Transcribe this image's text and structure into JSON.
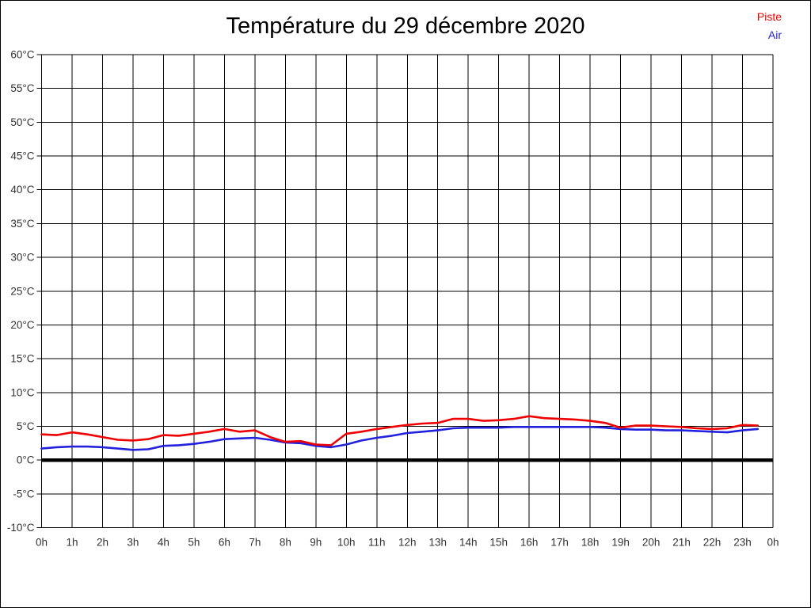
{
  "page": {
    "background": "#ffffff",
    "border_color": "#000000"
  },
  "header": {
    "title": "Température du 29 décembre 2020"
  },
  "legend": {
    "position": "top-right",
    "items": [
      {
        "label": "Piste",
        "color": "#ee0000"
      },
      {
        "label": "Air",
        "color": "#2222dd"
      }
    ]
  },
  "chart_data": {
    "type": "line",
    "title": "Température du 29 décembre 2020",
    "xlabel": "",
    "ylabel": "",
    "xlim": [
      0,
      24
    ],
    "ylim": [
      -10,
      60
    ],
    "grid": true,
    "grid_color": "#000000",
    "zero_line": {
      "value": 0,
      "color": "#000000",
      "width": 4.5
    },
    "x_tick_values": [
      0,
      1,
      2,
      3,
      4,
      5,
      6,
      7,
      8,
      9,
      10,
      11,
      12,
      13,
      14,
      15,
      16,
      17,
      18,
      19,
      20,
      21,
      22,
      23,
      24
    ],
    "x_tick_labels": [
      "0h",
      "1h",
      "2h",
      "3h",
      "4h",
      "5h",
      "6h",
      "7h",
      "8h",
      "9h",
      "10h",
      "11h",
      "12h",
      "13h",
      "14h",
      "15h",
      "16h",
      "17h",
      "18h",
      "19h",
      "20h",
      "21h",
      "22h",
      "23h",
      "0h"
    ],
    "y_tick_values": [
      60,
      55,
      50,
      45,
      40,
      35,
      30,
      25,
      20,
      15,
      10,
      5,
      0,
      -5,
      -10
    ],
    "y_tick_labels": [
      "60°C",
      "55°C",
      "50°C",
      "45°C",
      "40°C",
      "35°C",
      "30°C",
      "25°C",
      "20°C",
      "15°C",
      "10°C",
      "5°C",
      "0°C",
      "-5°C",
      "-10°C"
    ],
    "x": [
      0,
      0.5,
      1,
      1.5,
      2,
      2.5,
      3,
      3.5,
      4,
      4.5,
      5,
      5.5,
      6,
      6.5,
      7,
      7.5,
      8,
      8.5,
      9,
      9.5,
      10,
      10.5,
      11,
      11.5,
      12,
      12.5,
      13,
      13.5,
      14,
      14.5,
      15,
      15.5,
      16,
      16.5,
      17,
      17.5,
      18,
      18.5,
      19,
      19.5,
      20,
      20.5,
      21,
      21.5,
      22,
      22.5,
      23,
      23.5
    ],
    "series": [
      {
        "name": "Air",
        "color": "#2222dd",
        "line_width": 2.6,
        "values": [
          1.7,
          1.9,
          2.0,
          2.0,
          1.9,
          1.7,
          1.5,
          1.6,
          2.1,
          2.2,
          2.4,
          2.7,
          3.1,
          3.2,
          3.3,
          3.0,
          2.6,
          2.5,
          2.1,
          1.9,
          2.3,
          2.9,
          3.3,
          3.6,
          4.0,
          4.2,
          4.4,
          4.7,
          4.8,
          4.8,
          4.8,
          4.9,
          4.9,
          4.9,
          4.9,
          4.9,
          4.9,
          4.8,
          4.6,
          4.5,
          4.5,
          4.4,
          4.4,
          4.3,
          4.2,
          4.1,
          4.4,
          4.6
        ]
      },
      {
        "name": "Piste",
        "color": "#ee0000",
        "line_width": 2.6,
        "values": [
          3.8,
          3.7,
          4.1,
          3.8,
          3.4,
          3.0,
          2.9,
          3.1,
          3.7,
          3.6,
          3.9,
          4.2,
          4.6,
          4.2,
          4.4,
          3.4,
          2.7,
          2.8,
          2.3,
          2.2,
          3.9,
          4.2,
          4.6,
          4.9,
          5.2,
          5.4,
          5.5,
          6.1,
          6.1,
          5.8,
          5.9,
          6.1,
          6.5,
          6.2,
          6.1,
          6.0,
          5.8,
          5.5,
          4.8,
          5.1,
          5.1,
          5.0,
          4.9,
          4.7,
          4.6,
          4.7,
          5.2,
          5.1
        ]
      }
    ],
    "legend_position": "top-right"
  }
}
